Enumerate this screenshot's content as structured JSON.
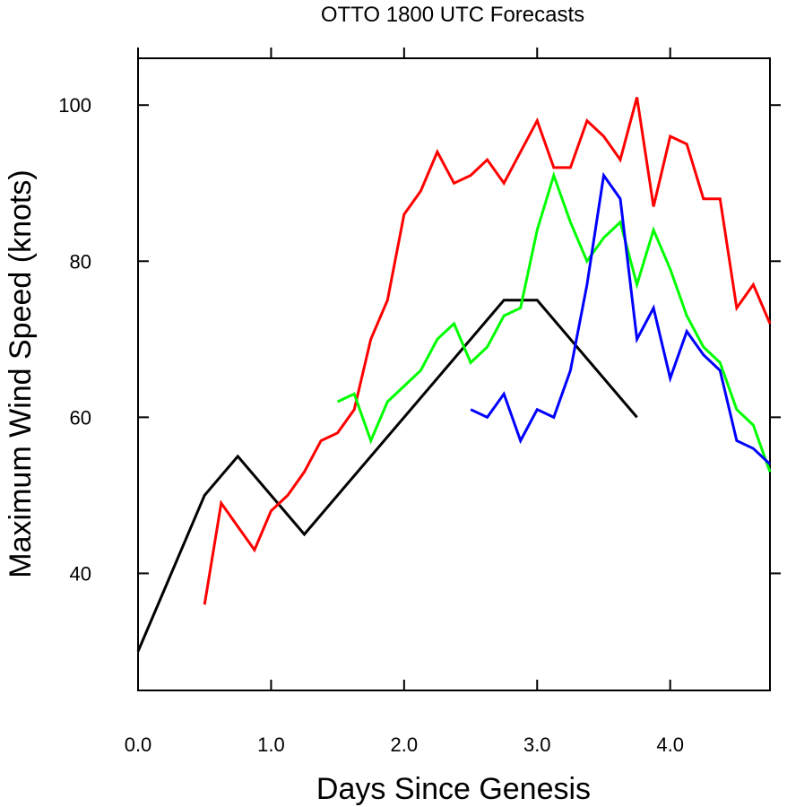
{
  "chart_data": {
    "type": "line",
    "title": "OTTO 1800 UTC Forecasts",
    "xlabel": "Days Since Genesis",
    "ylabel": "Maximum Wind Speed (knots)",
    "xlim": [
      0,
      4.75
    ],
    "ylim": [
      25,
      106
    ],
    "x_ticks": [
      0.0,
      1.0,
      2.0,
      3.0,
      4.0
    ],
    "x_tick_labels": [
      "0.0",
      "1.0",
      "2.0",
      "3.0",
      "4.0"
    ],
    "y_ticks": [
      40,
      60,
      80,
      100
    ],
    "y_tick_labels": [
      "40",
      "60",
      "80",
      "100"
    ],
    "grid": false,
    "legend": "none",
    "series": [
      {
        "color": "#000000",
        "x": [
          0.0,
          0.5,
          0.75,
          1.25,
          2.75,
          3.0,
          3.75
        ],
        "values": [
          30,
          50,
          55,
          45,
          75,
          75,
          60
        ]
      },
      {
        "color": "#ff0000",
        "x": [
          0.5,
          0.625,
          0.75,
          0.875,
          1.0,
          1.125,
          1.25,
          1.375,
          1.5,
          1.625,
          1.75,
          1.875,
          2.0,
          2.125,
          2.25,
          2.375,
          2.5,
          2.625,
          2.75,
          2.875,
          3.0,
          3.125,
          3.25,
          3.375,
          3.5,
          3.625,
          3.75,
          3.875,
          4.0,
          4.125,
          4.25,
          4.375,
          4.5,
          4.625,
          4.75
        ],
        "values": [
          36,
          49,
          46,
          43,
          48,
          50,
          53,
          57,
          58,
          61,
          70,
          75,
          86,
          89,
          94,
          90,
          91,
          93,
          90,
          94,
          98,
          92,
          92,
          98,
          96,
          93,
          101,
          87,
          96,
          95,
          88,
          88,
          74,
          77,
          72
        ]
      },
      {
        "color": "#00ff00",
        "x": [
          1.5,
          1.625,
          1.75,
          1.875,
          2.0,
          2.125,
          2.25,
          2.375,
          2.5,
          2.625,
          2.75,
          2.875,
          3.0,
          3.125,
          3.25,
          3.375,
          3.5,
          3.625,
          3.75,
          3.875,
          4.0,
          4.125,
          4.25,
          4.375,
          4.5,
          4.625,
          4.75
        ],
        "values": [
          62,
          63,
          57,
          62,
          64,
          66,
          70,
          72,
          67,
          69,
          73,
          74,
          84,
          91,
          85,
          80,
          83,
          85,
          77,
          84,
          79,
          73,
          69,
          67,
          61,
          59,
          53
        ]
      },
      {
        "color": "#0000ff",
        "x": [
          2.5,
          2.625,
          2.75,
          2.875,
          3.0,
          3.125,
          3.25,
          3.375,
          3.5,
          3.625,
          3.75,
          3.875,
          4.0,
          4.125,
          4.25,
          4.375,
          4.5,
          4.625,
          4.75
        ],
        "values": [
          61,
          60,
          63,
          57,
          61,
          60,
          66,
          77,
          91,
          88,
          70,
          74,
          65,
          71,
          68,
          66,
          57,
          56,
          54
        ]
      }
    ]
  }
}
